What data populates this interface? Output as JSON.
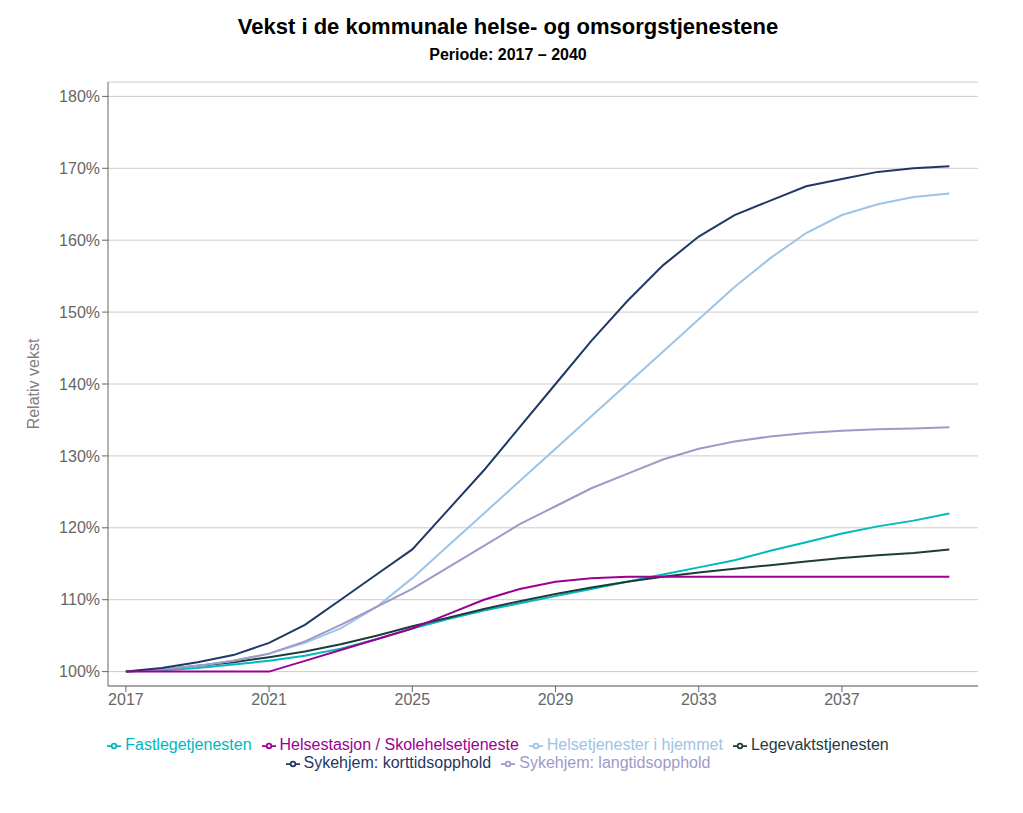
{
  "chart_data": {
    "type": "line",
    "title": "Vekst i de kommunale helse- og omsorgstjenestene",
    "subtitle": "Periode: 2017 – 2040",
    "ylabel": "Relativ vekst",
    "x": [
      2017,
      2018,
      2019,
      2020,
      2021,
      2022,
      2023,
      2024,
      2025,
      2026,
      2027,
      2028,
      2029,
      2030,
      2031,
      2032,
      2033,
      2034,
      2035,
      2036,
      2037,
      2038,
      2039,
      2040
    ],
    "series": [
      {
        "name": "Fastlegetjenesten",
        "color": "#00B8BE",
        "values": [
          100,
          100.2,
          100.5,
          101.0,
          101.5,
          102.2,
          103.2,
          104.5,
          106.0,
          107.3,
          108.5,
          109.5,
          110.5,
          111.5,
          112.5,
          113.5,
          114.5,
          115.5,
          116.8,
          118.0,
          119.2,
          120.2,
          121.0,
          122.0
        ]
      },
      {
        "name": "Legevaktstjenesten",
        "color": "#1D3D3D",
        "values": [
          100,
          100.3,
          100.8,
          101.3,
          102.0,
          102.8,
          103.8,
          105.0,
          106.3,
          107.5,
          108.7,
          109.8,
          110.8,
          111.7,
          112.5,
          113.2,
          113.8,
          114.3,
          114.8,
          115.3,
          115.8,
          116.2,
          116.5,
          117.0
        ]
      },
      {
        "name": "Helsetjenester i hjemmet",
        "color": "#9DC3E6",
        "values": [
          100,
          100.3,
          100.8,
          101.5,
          102.5,
          104.0,
          106.0,
          109.0,
          113.0,
          117.5,
          122.0,
          126.5,
          131.0,
          135.5,
          140.0,
          144.5,
          149.0,
          153.5,
          157.5,
          161.0,
          163.5,
          165.0,
          166.0,
          166.5
        ]
      },
      {
        "name": "Sykehjem: langtidsopphold",
        "color": "#9E9AC8",
        "values": [
          100,
          100.3,
          100.8,
          101.5,
          102.5,
          104.2,
          106.5,
          109.0,
          111.5,
          114.5,
          117.5,
          120.5,
          123.0,
          125.5,
          127.5,
          129.5,
          131.0,
          132.0,
          132.7,
          133.2,
          133.5,
          133.7,
          133.8,
          134.0
        ]
      },
      {
        "name": "Sykehjem: korttidsopphold",
        "color": "#1F3864",
        "values": [
          100,
          100.5,
          101.3,
          102.3,
          104.0,
          106.5,
          110.0,
          113.5,
          117.0,
          122.5,
          128.0,
          134.0,
          140.0,
          146.0,
          151.5,
          156.5,
          160.5,
          163.5,
          165.5,
          167.5,
          168.5,
          169.5,
          170.0,
          170.3
        ]
      },
      {
        "name": "Helsestasjon / Skolehelsetjeneste",
        "color": "#9B0092",
        "values": [
          100,
          100.0,
          100.0,
          100.0,
          100.0,
          101.5,
          103.0,
          104.5,
          106.0,
          108.0,
          110.0,
          111.5,
          112.5,
          113.0,
          113.2,
          113.2,
          113.2,
          113.2,
          113.2,
          113.2,
          113.2,
          113.2,
          113.2,
          113.2
        ]
      }
    ],
    "xlim": [
      2016.5,
      2040.8
    ],
    "xticks": [
      2017,
      2021,
      2025,
      2029,
      2033,
      2037
    ],
    "ylim": [
      98,
      182
    ],
    "yticks": [
      {
        "value": 100,
        "label": "100%"
      },
      {
        "value": 110,
        "label": "110%"
      },
      {
        "value": 120,
        "label": "120%"
      },
      {
        "value": 130,
        "label": "130%"
      },
      {
        "value": 140,
        "label": "140%"
      },
      {
        "value": 150,
        "label": "150%"
      },
      {
        "value": 160,
        "label": "160%"
      },
      {
        "value": 170,
        "label": "170%"
      },
      {
        "value": 180,
        "label": "180%"
      }
    ],
    "grid": "y",
    "legend": "bottom"
  }
}
